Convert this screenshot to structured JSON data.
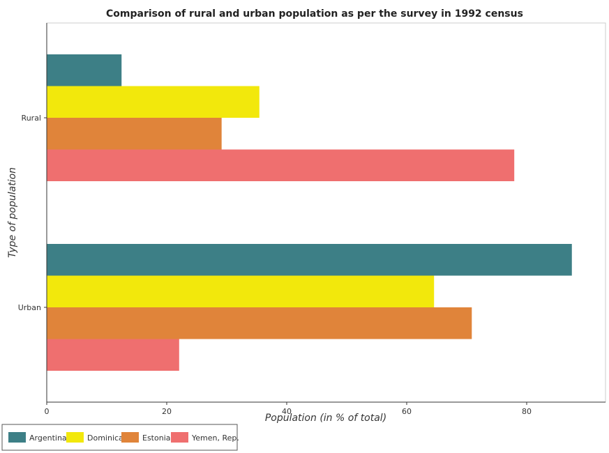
{
  "chart_data": {
    "type": "bar",
    "orientation": "horizontal",
    "title": "Comparison of rural and urban population as per the survey in 1992 census",
    "xlabel": "Population (in % of total)",
    "ylabel": "Type of population",
    "categories": [
      "Rural",
      "Urban"
    ],
    "xlim": [
      0,
      92
    ],
    "xticks": [
      0,
      20,
      40,
      60,
      80
    ],
    "xtick_labels": [
      "0",
      "20",
      "40",
      "60",
      "80"
    ],
    "grid": false,
    "legend_position": "bottom-left",
    "series": [
      {
        "name": "Argentina",
        "color": "#3d7f86",
        "values": [
          12.47,
          87.53
        ]
      },
      {
        "name": "Dominica",
        "color": "#f2e80c",
        "values": [
          35.44,
          64.56
        ]
      },
      {
        "name": "Estonia",
        "color": "#e0843a",
        "values": [
          29.15,
          70.85
        ]
      },
      {
        "name": "Yemen, Rep.",
        "color": "#ef6f6f",
        "values": [
          77.93,
          22.07
        ]
      }
    ]
  }
}
